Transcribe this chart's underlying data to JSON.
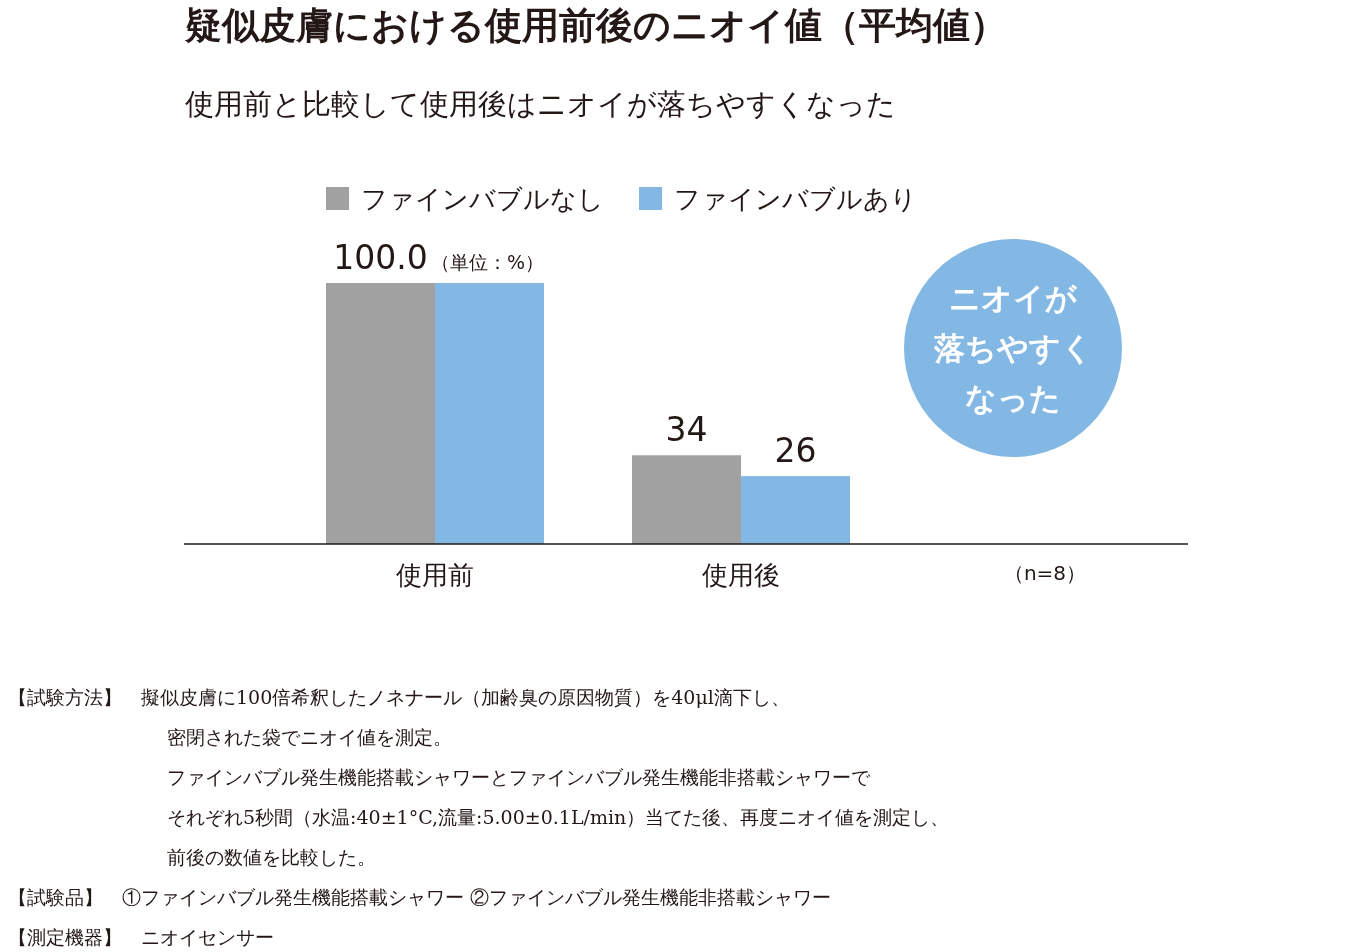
{
  "chart_data": {
    "type": "bar",
    "title": "疑似皮膚における使用前後のニオイ値（平均値）",
    "subtitle": "使用前と比較して使用後はニオイが落ちやすくなった",
    "categories": [
      "使用前",
      "使用後"
    ],
    "series": [
      {
        "name": "ファインバブルなし",
        "color": "#a0a1a0",
        "values": [
          100.0,
          34
        ],
        "value_labels": [
          "100.0",
          "34"
        ]
      },
      {
        "name": "ファインバブルあり",
        "color": "#84b8e4",
        "values": [
          100.0,
          26
        ],
        "value_labels": [
          null,
          "26"
        ]
      }
    ],
    "legend": "top",
    "annotations": [
      "（単位：%）",
      "ニオイが",
      "落ちやすく",
      "なった",
      "（n=8）",
      "【試験方法】　擬似皮膚に100倍希釈したノネナール（加齢臭の原因物質）を40μl滴下し、",
      "密閉された袋でニオイ値を測定。",
      "ファインバブル発生機能搭載シャワーとファインバブル発生機能非搭載シャワーで",
      "それぞれ5秒間（水温:40±1°C,流量:5.00±0.1L/min）当てた後、再度ニオイ値を測定し、",
      "前後の数値を比較した。",
      "【試験品】　①ファインバブル発生機能搭載シャワー ②ファインバブル発生機能非搭載シャワー",
      "【測定機器】　ニオイセンサー"
    ]
  }
}
